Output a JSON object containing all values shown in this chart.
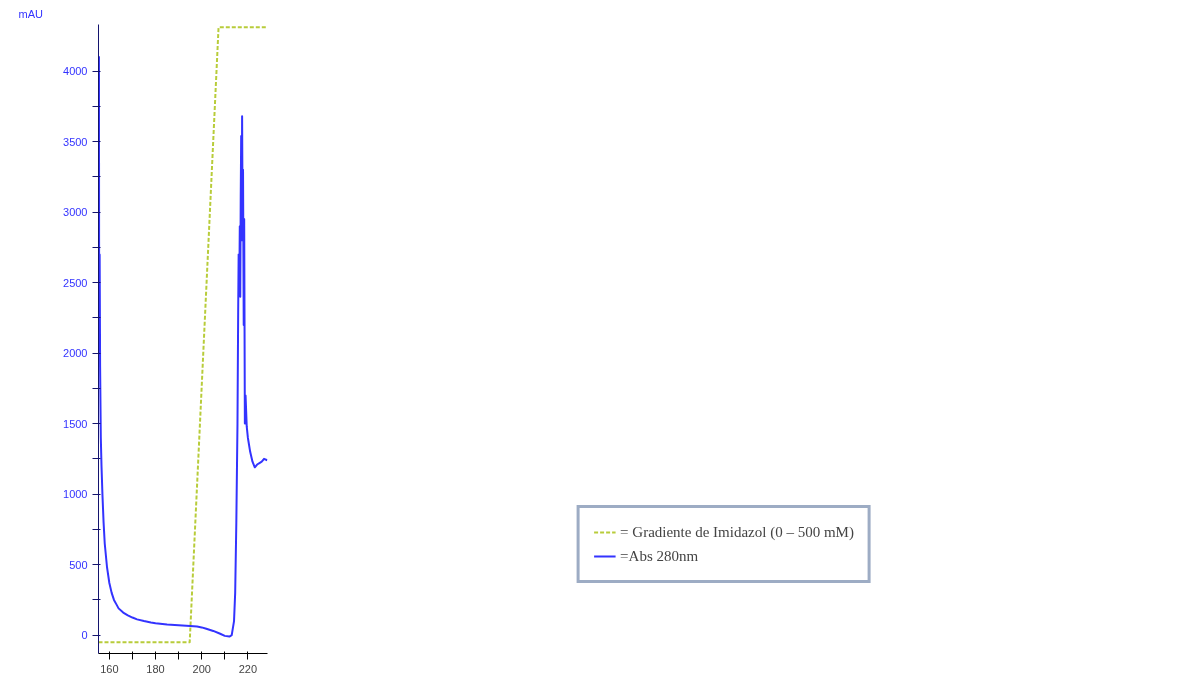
{
  "chart_data": {
    "type": "line",
    "ylabel": "mAU",
    "xlim": [
      155.3,
      228.5
    ],
    "ylim": [
      -130,
      4330
    ],
    "xticks": [
      160,
      {
        "value": 170,
        "label": null
      },
      180,
      {
        "value": 190,
        "label": null
      },
      200,
      {
        "value": 210,
        "label": null
      },
      220
    ],
    "yticks": [
      0,
      {
        "value": 250,
        "label": null
      },
      500,
      {
        "value": 750,
        "label": null
      },
      1000,
      {
        "value": 1250,
        "label": null
      },
      1500,
      {
        "value": 1750,
        "label": null
      },
      2000,
      {
        "value": 2250,
        "label": null
      },
      2500,
      {
        "value": 2750,
        "label": null
      },
      3000,
      {
        "value": 3250,
        "label": null
      },
      3500,
      {
        "value": 3750,
        "label": null
      },
      4000
    ],
    "grid": false,
    "legend": "bottom right",
    "series": [
      {
        "name": "= Gradiente de Imidazol (0 – 500 mM)",
        "color": "#b8cc3a",
        "line_style": "dashed",
        "x": [
          155.3,
          194.8,
          207.3,
          228.5
        ],
        "values": [
          -50,
          -50,
          4310,
          4310
        ]
      },
      {
        "name": "=Abs 280nm",
        "color": "#3333ff",
        "line_style": "solid",
        "x": [
          155.4,
          155.5,
          155.6,
          155.8,
          156.0,
          156.3,
          156.6,
          157.0,
          157.5,
          158.0,
          159,
          160,
          161,
          162,
          163,
          164,
          166,
          168,
          170,
          172,
          175,
          178,
          180,
          185,
          190,
          195,
          198,
          200,
          202,
          205,
          208,
          210,
          212,
          213,
          214,
          214.5,
          215,
          215.5,
          215.8,
          216.0,
          216.3,
          216.5,
          216.7,
          216.9,
          217.1,
          217.3,
          217.5,
          217.7,
          217.9,
          218.2,
          218.4,
          218.7,
          219,
          219.5,
          220,
          221,
          222,
          223,
          224,
          225,
          226,
          227,
          228.4
        ],
        "values": [
          2770,
          4100,
          2000,
          2700,
          1900,
          1400,
          1200,
          1000,
          800,
          650,
          480,
          370,
          300,
          250,
          220,
          190,
          160,
          140,
          125,
          112,
          100,
          90,
          85,
          75,
          70,
          65,
          62,
          55,
          45,
          30,
          10,
          -5,
          -10,
          0,
          100,
          300,
          800,
          1500,
          2300,
          2700,
          2500,
          2900,
          2400,
          3100,
          3540,
          2800,
          3680,
          3000,
          3300,
          2200,
          2950,
          1500,
          1700,
          1480,
          1400,
          1300,
          1230,
          1190,
          1210,
          1220,
          1230,
          1250,
          1240
        ]
      }
    ]
  }
}
